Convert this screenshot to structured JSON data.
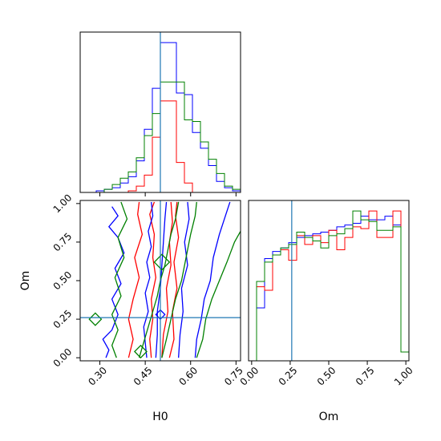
{
  "chart_data": {
    "type": "corner",
    "parameters": [
      "H0",
      "Om"
    ],
    "truth": {
      "H0": 0.5,
      "Om": 0.26
    },
    "truth_color": "#1f77b4",
    "axes": {
      "H0": {
        "label": "H0",
        "range": [
          0.235,
          0.765
        ],
        "ticks": [
          0.3,
          0.45,
          0.6,
          0.75
        ],
        "tick_labels": [
          "0.30",
          "0.45",
          "0.60",
          "0.75"
        ]
      },
      "Om": {
        "label": "Om",
        "range": [
          -0.02,
          1.02
        ],
        "ticks": [
          0.0,
          0.25,
          0.5,
          0.75,
          1.0
        ],
        "tick_labels": [
          "0.00",
          "0.25",
          "0.50",
          "0.75",
          "1.00"
        ]
      }
    },
    "hist_H0": {
      "edges": [
        0.235,
        0.2615,
        0.288,
        0.3145,
        0.341,
        0.3675,
        0.394,
        0.4205,
        0.447,
        0.4735,
        0.5,
        0.5265,
        0.553,
        0.5795,
        0.606,
        0.6325,
        0.659,
        0.6855,
        0.712,
        0.7385,
        0.765
      ],
      "series": [
        {
          "color": "#0000ff",
          "values": [
            0,
            0,
            1,
            2,
            3,
            6,
            10,
            20,
            40,
            66,
            95,
            95,
            63,
            62,
            38,
            28,
            17,
            7,
            3,
            1
          ]
        },
        {
          "color": "#ff0000",
          "values": [
            0,
            0,
            0,
            0,
            0,
            0,
            1,
            4,
            11,
            35,
            58,
            58,
            19,
            6,
            0,
            0,
            0,
            0,
            0,
            0
          ]
        },
        {
          "color": "#008000",
          "values": [
            0,
            0,
            0,
            2,
            5,
            9,
            13,
            22,
            36,
            50,
            70,
            70,
            70,
            46,
            45,
            32,
            21,
            12,
            4,
            2
          ]
        }
      ]
    },
    "hist_Om": {
      "edges": [
        -0.02,
        0.032,
        0.084,
        0.136,
        0.188,
        0.24,
        0.292,
        0.344,
        0.396,
        0.448,
        0.5,
        0.552,
        0.604,
        0.656,
        0.708,
        0.76,
        0.812,
        0.864,
        0.916,
        0.968,
        1.02
      ],
      "series": [
        {
          "color": "#0000ff",
          "values": [
            0,
            30,
            58,
            62,
            64,
            67,
            70,
            71,
            72,
            73,
            74,
            76,
            77,
            78,
            82,
            80,
            80,
            82,
            77,
            5
          ]
        },
        {
          "color": "#ff0000",
          "values": [
            0,
            42,
            40,
            60,
            63,
            57,
            71,
            66,
            71,
            67,
            74,
            63,
            70,
            76,
            75,
            85,
            70,
            70,
            85,
            5
          ]
        },
        {
          "color": "#008000",
          "values": [
            0,
            45,
            56,
            60,
            64,
            66,
            73,
            70,
            68,
            64,
            71,
            72,
            75,
            85,
            80,
            79,
            74,
            74,
            76,
            5
          ]
        }
      ]
    },
    "contours": [
      {
        "color": "#ff0000",
        "lines": [
          [
            [
              0.395,
              0.0
            ],
            [
              0.41,
              0.12
            ],
            [
              0.395,
              0.25
            ],
            [
              0.41,
              0.38
            ],
            [
              0.43,
              0.52
            ],
            [
              0.415,
              0.65
            ],
            [
              0.44,
              0.8
            ],
            [
              0.425,
              0.93
            ],
            [
              0.43,
              1.01
            ]
          ],
          [
            [
              0.47,
              0.0
            ],
            [
              0.465,
              0.12
            ],
            [
              0.475,
              0.25
            ],
            [
              0.47,
              0.38
            ],
            [
              0.485,
              0.52
            ],
            [
              0.475,
              0.65
            ],
            [
              0.48,
              0.8
            ],
            [
              0.465,
              0.93
            ],
            [
              0.48,
              1.01
            ]
          ],
          [
            [
              0.505,
              0.0
            ],
            [
              0.51,
              0.15
            ],
            [
              0.525,
              0.3
            ],
            [
              0.52,
              0.45
            ],
            [
              0.535,
              0.6
            ],
            [
              0.53,
              0.75
            ],
            [
              0.54,
              0.88
            ],
            [
              0.535,
              1.01
            ]
          ],
          [
            [
              0.53,
              0.0
            ],
            [
              0.545,
              0.12
            ],
            [
              0.54,
              0.3
            ],
            [
              0.555,
              0.45
            ],
            [
              0.545,
              0.62
            ],
            [
              0.56,
              0.78
            ],
            [
              0.55,
              0.92
            ],
            [
              0.555,
              1.01
            ]
          ]
        ]
      },
      {
        "color": "#0000ff",
        "lines": [
          [
            [
              0.32,
              0.0
            ],
            [
              0.33,
              0.05
            ],
            [
              0.31,
              0.12
            ],
            [
              0.34,
              0.18
            ],
            [
              0.36,
              0.28
            ],
            [
              0.34,
              0.38
            ],
            [
              0.37,
              0.48
            ],
            [
              0.35,
              0.58
            ],
            [
              0.38,
              0.68
            ],
            [
              0.36,
              0.78
            ],
            [
              0.33,
              0.85
            ],
            [
              0.36,
              0.92
            ],
            [
              0.34,
              0.98
            ]
          ],
          [
            [
              0.455,
              0.0
            ],
            [
              0.45,
              0.1
            ],
            [
              0.445,
              0.2
            ],
            [
              0.46,
              0.3
            ],
            [
              0.45,
              0.42
            ],
            [
              0.465,
              0.52
            ],
            [
              0.455,
              0.62
            ],
            [
              0.47,
              0.72
            ],
            [
              0.46,
              0.82
            ],
            [
              0.475,
              0.92
            ],
            [
              0.47,
              1.01
            ]
          ],
          [
            [
              0.485,
              0.0
            ],
            [
              0.49,
              0.15
            ],
            [
              0.49,
              0.3
            ],
            [
              0.5,
              0.45
            ],
            [
              0.505,
              0.6
            ],
            [
              0.51,
              0.75
            ],
            [
              0.515,
              0.9
            ],
            [
              0.52,
              1.01
            ]
          ],
          [
            [
              0.56,
              0.0
            ],
            [
              0.565,
              0.15
            ],
            [
              0.575,
              0.3
            ],
            [
              0.57,
              0.45
            ],
            [
              0.59,
              0.6
            ],
            [
              0.58,
              0.75
            ],
            [
              0.595,
              0.9
            ],
            [
              0.59,
              1.01
            ]
          ],
          [
            [
              0.615,
              0.0
            ],
            [
              0.62,
              0.12
            ],
            [
              0.635,
              0.25
            ],
            [
              0.645,
              0.38
            ],
            [
              0.665,
              0.5
            ],
            [
              0.675,
              0.65
            ],
            [
              0.695,
              0.8
            ],
            [
              0.715,
              0.92
            ],
            [
              0.73,
              1.01
            ]
          ]
        ]
      },
      {
        "color": "#008000",
        "lines": [
          [
            [
              0.355,
              0.0
            ],
            [
              0.34,
              0.08
            ],
            [
              0.36,
              0.18
            ],
            [
              0.34,
              0.28
            ],
            [
              0.37,
              0.4
            ],
            [
              0.35,
              0.52
            ],
            [
              0.38,
              0.65
            ],
            [
              0.36,
              0.78
            ],
            [
              0.39,
              0.9
            ],
            [
              0.37,
              1.01
            ]
          ],
          [
            [
              0.43,
              0.0
            ],
            [
              0.445,
              0.1
            ],
            [
              0.46,
              0.2
            ],
            [
              0.475,
              0.3
            ],
            [
              0.49,
              0.4
            ],
            [
              0.5,
              0.5
            ],
            [
              0.515,
              0.6
            ],
            [
              0.525,
              0.7
            ],
            [
              0.535,
              0.8
            ],
            [
              0.55,
              0.9
            ],
            [
              0.56,
              1.01
            ]
          ],
          [
            [
              0.505,
              0.0
            ],
            [
              0.52,
              0.12
            ],
            [
              0.535,
              0.25
            ],
            [
              0.55,
              0.38
            ],
            [
              0.57,
              0.5
            ],
            [
              0.585,
              0.65
            ],
            [
              0.6,
              0.8
            ],
            [
              0.615,
              0.92
            ],
            [
              0.62,
              1.01
            ]
          ],
          [
            [
              0.62,
              0.0
            ],
            [
              0.64,
              0.12
            ],
            [
              0.65,
              0.25
            ],
            [
              0.67,
              0.38
            ],
            [
              0.695,
              0.5
            ],
            [
              0.72,
              0.62
            ],
            [
              0.745,
              0.75
            ],
            [
              0.765,
              0.82
            ]
          ]
        ]
      }
    ],
    "blobs": [
      {
        "color": "#008000",
        "x": 0.285,
        "y": 0.25,
        "r": 0.02
      },
      {
        "color": "#008000",
        "x": 0.435,
        "y": 0.04,
        "r": 0.02
      },
      {
        "color": "#0000ff",
        "x": 0.5,
        "y": 0.28,
        "r": 0.015
      },
      {
        "color": "#008000",
        "x": 0.505,
        "y": 0.62,
        "r": 0.025
      }
    ]
  }
}
